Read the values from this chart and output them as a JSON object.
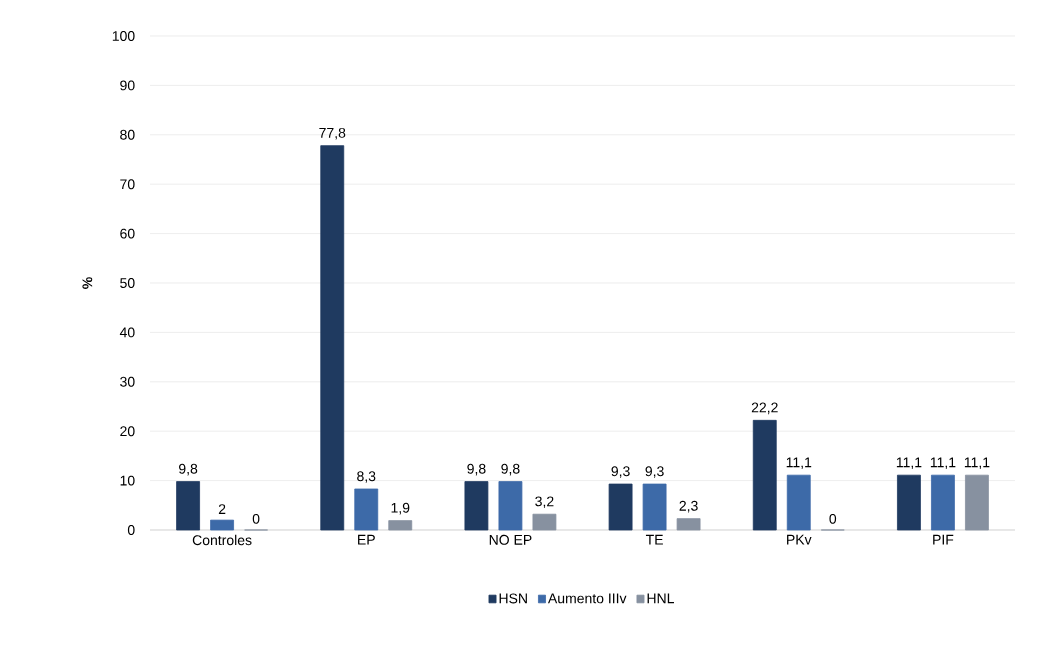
{
  "chart_data": {
    "type": "bar",
    "ylabel": "%",
    "categories": [
      "Controles",
      "EP",
      "NO EP",
      "TE",
      "PKv",
      "PIF"
    ],
    "series": [
      {
        "name": "HSN",
        "color": "#1f3a60",
        "values": [
          9.8,
          77.8,
          9.8,
          9.3,
          22.2,
          11.1
        ],
        "value_labels": [
          "9,8",
          "77,8",
          "9,8",
          "9,3",
          "22,2",
          "11,1"
        ]
      },
      {
        "name": "Aumento IIIv",
        "color": "#3d6aa8",
        "values": [
          2,
          8.3,
          9.8,
          9.3,
          11.1,
          11.1
        ],
        "value_labels": [
          "2",
          "8,3",
          "9,8",
          "9,3",
          "11,1",
          "11,1"
        ]
      },
      {
        "name": "HNL",
        "color": "#8791a0",
        "values": [
          0,
          1.9,
          3.2,
          2.3,
          0,
          11.1
        ],
        "value_labels": [
          "0",
          "1,9",
          "3,2",
          "2,3",
          "0",
          "11,1"
        ]
      }
    ],
    "ylim": [
      0,
      100
    ],
    "yticks": [
      0,
      10,
      20,
      30,
      40,
      50,
      60,
      70,
      80,
      90,
      100
    ],
    "grid": "y",
    "legend": "bottom"
  }
}
